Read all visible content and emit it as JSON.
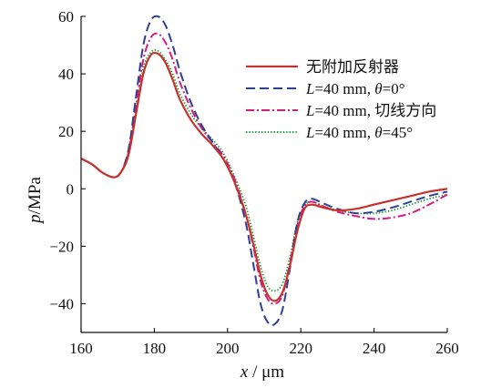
{
  "chart_data": {
    "type": "line",
    "xlabel": {
      "var": "x",
      "unit": " / μm"
    },
    "ylabel": {
      "var": "p",
      "unit": "/MPa"
    },
    "xlim": [
      160,
      260
    ],
    "ylim": [
      -50,
      60
    ],
    "xticks": [
      160,
      180,
      200,
      220,
      240,
      260
    ],
    "yticks": [
      -40,
      -20,
      0,
      20,
      40,
      60
    ],
    "grid": false,
    "legend_position": "top-right",
    "series": [
      {
        "name": "无附加反射器",
        "legend": [
          {
            "t": "无附加反射器",
            "i": false
          }
        ],
        "color": "#c8322d",
        "dash": "solid",
        "x": [
          160,
          163,
          166,
          169,
          171,
          173,
          175,
          177,
          179,
          181,
          183,
          185,
          187,
          190,
          193,
          196,
          199,
          202,
          205,
          207,
          209,
          211,
          213,
          215,
          217,
          219,
          221,
          223,
          226,
          230,
          235,
          240,
          245,
          250,
          255,
          260
        ],
        "y": [
          10.5,
          8.5,
          5.5,
          4,
          6,
          12,
          26,
          40,
          46.5,
          47,
          44,
          38,
          31,
          24,
          19,
          15,
          10,
          2,
          -9,
          -19,
          -30,
          -37,
          -39,
          -36,
          -27,
          -15,
          -7,
          -5.5,
          -6.5,
          -7.5,
          -7,
          -5.5,
          -4,
          -2.5,
          -1,
          0
        ]
      },
      {
        "name": "L=40 mm, θ=0°",
        "legend": [
          {
            "t": "L",
            "i": true
          },
          {
            "t": "=40 mm, ",
            "i": false
          },
          {
            "t": "θ",
            "i": true
          },
          {
            "t": "=0°",
            "i": false
          }
        ],
        "color": "#2d3f97",
        "dash": "dashed",
        "x": [
          160,
          163,
          166,
          169,
          171,
          173,
          175,
          177,
          179,
          181,
          183,
          185,
          187,
          190,
          193,
          196,
          199,
          202,
          205,
          207,
          209,
          211,
          213,
          215,
          217,
          219,
          221,
          223,
          226,
          230,
          235,
          240,
          245,
          250,
          255,
          260
        ],
        "y": [
          10.5,
          8.5,
          5.5,
          4,
          6,
          14,
          32,
          50,
          58.5,
          60,
          57,
          50,
          41,
          30,
          22,
          16,
          10,
          2,
          -12,
          -26,
          -40,
          -46.5,
          -47,
          -42,
          -28,
          -12,
          -5,
          -3.5,
          -5,
          -7,
          -8.5,
          -8,
          -6.5,
          -4.5,
          -2.5,
          -1
        ]
      },
      {
        "name": "L=40 mm, 切线方向",
        "legend": [
          {
            "t": "L",
            "i": true
          },
          {
            "t": "=40 mm, 切线方向",
            "i": false
          }
        ],
        "color": "#d41d82",
        "dash": "dashdot",
        "x": [
          160,
          163,
          166,
          169,
          171,
          173,
          175,
          177,
          179,
          181,
          183,
          185,
          187,
          190,
          193,
          196,
          199,
          202,
          205,
          207,
          209,
          211,
          213,
          215,
          217,
          219,
          221,
          223,
          226,
          230,
          235,
          240,
          245,
          250,
          255,
          260
        ],
        "y": [
          10.5,
          8.5,
          5.5,
          4,
          6,
          13,
          29,
          45,
          52.5,
          54,
          51,
          45,
          37,
          28,
          21,
          16,
          11,
          3,
          -9,
          -20,
          -32,
          -38.5,
          -40,
          -37,
          -26,
          -13,
          -6,
          -4.5,
          -6,
          -8,
          -9.5,
          -10.5,
          -10,
          -8.5,
          -5.5,
          -2
        ]
      },
      {
        "name": "L=40 mm, θ=45°",
        "legend": [
          {
            "t": "L",
            "i": true
          },
          {
            "t": "=40 mm, ",
            "i": false
          },
          {
            "t": "θ",
            "i": true
          },
          {
            "t": "=45°",
            "i": false
          }
        ],
        "color": "#1e9a3c",
        "dash": "dotted",
        "x": [
          160,
          163,
          166,
          169,
          171,
          173,
          175,
          177,
          179,
          181,
          183,
          185,
          187,
          190,
          193,
          196,
          199,
          202,
          205,
          207,
          209,
          211,
          213,
          215,
          217,
          219,
          221,
          223,
          226,
          230,
          235,
          240,
          245,
          250,
          255,
          260
        ],
        "y": [
          10.5,
          8.5,
          5.5,
          4,
          6,
          12,
          27,
          42,
          47.5,
          48,
          45,
          40,
          33,
          26,
          21,
          17,
          12,
          4,
          -6,
          -16,
          -27,
          -34,
          -35.5,
          -33,
          -24,
          -12,
          -6,
          -4.5,
          -6,
          -7.5,
          -8.5,
          -8.5,
          -7.5,
          -5.5,
          -3.5,
          -2
        ]
      }
    ]
  }
}
